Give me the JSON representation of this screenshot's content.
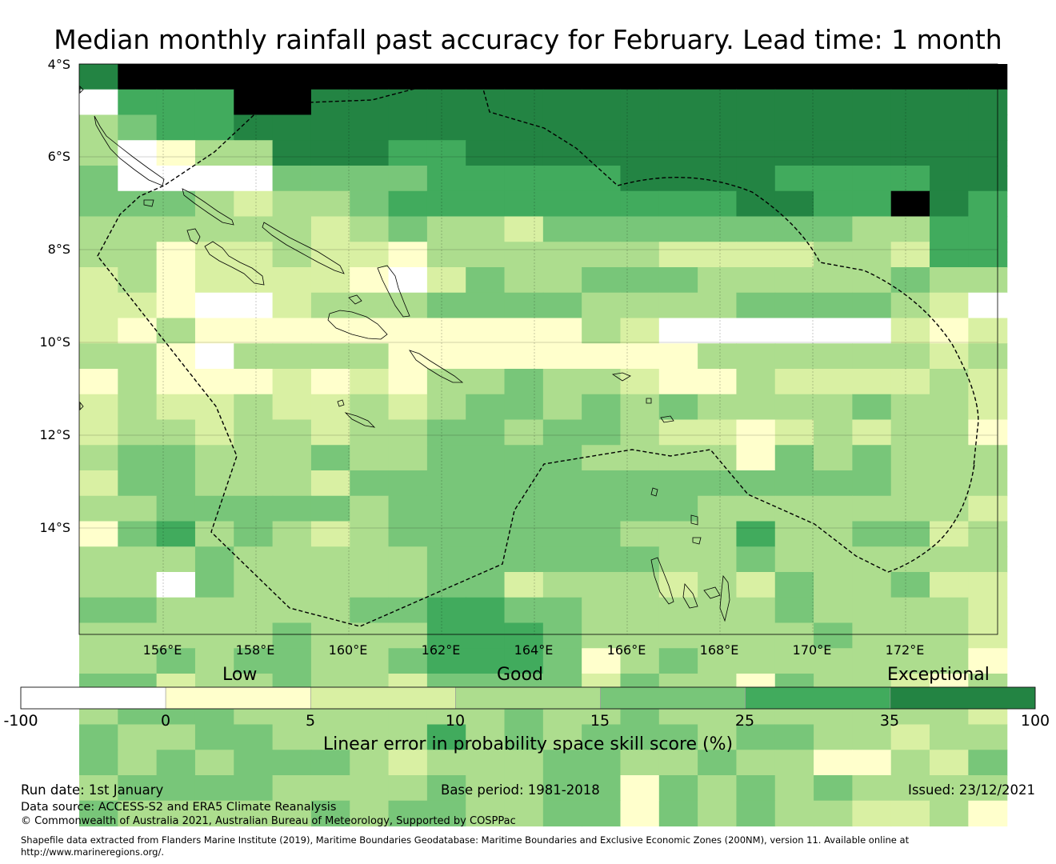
{
  "title": "Median monthly rainfall past accuracy for February. Lead time: 1 month",
  "map": {
    "lat_labels": [
      "4°S",
      "6°S",
      "8°S",
      "10°S",
      "12°S",
      "14°S"
    ],
    "lon_labels": [
      "156°E",
      "158°E",
      "160°E",
      "162°E",
      "164°E",
      "166°E",
      "168°E",
      "170°E",
      "172°E"
    ],
    "lon_range": [
      154.25,
      174.0
    ],
    "lat_range": [
      -4.0,
      -16.25
    ],
    "grid": [
      "677777777777777777777777",
      "055577666666666666666666",
      "345566666666666666666666",
      "301336665566666666666666",
      "400004444555556666555566",
      "444323345555555556655765",
      "333333234332444444443355",
      "331223221333333222233255",
      "231222210243344433333433",
      "221002333444433334444320",
      "213111111111132000000212",
      "331033331111111133333323",
      "131112121334332113222232",
      "232232232344343433334332",
      "233233233443443221232331",
      "344333433444433331434333",
      "244333244444444444444333",
      "334444434444444433333332",
      "145343234444443335334423",
      "333433333444444334333333",
      "330433333442333232433422",
      "443333344554433333433332",
      "333334333555433333343332",
      "334344334555413433333331",
      "442334332444424331433213",
      "344433333334334333333332",
      "433443333534344434433233",
      "434344432333443343311324",
      "344443333433441434343333",
      "433333434433441434332231"
    ],
    "colors": [
      "#ffffff",
      "#ffffcc",
      "#d9f0a3",
      "#addd8e",
      "#78c679",
      "#41ab5d",
      "#238443"
    ]
  },
  "colorbar": {
    "categories": [
      "Low",
      "Good",
      "Exceptional"
    ],
    "ticks": [
      "-100",
      "0",
      "5",
      "10",
      "15",
      "25",
      "35",
      "100"
    ],
    "label": "Linear error in probability space skill score (%)"
  },
  "footer": {
    "run_date": "Run date: 1st January",
    "base_period": "Base period: 1981-2018",
    "issued": "Issued: 23/12/2021",
    "data_source": "Data source: ACCESS-S2 and ERA5 Climate Reanalysis",
    "copyright": "© Commonwealth of Australia 2021, Australian Bureau of Meteorology, Supported by COSPPac",
    "shapefile_line1": "Shapefile data extracted from Flanders Marine Institute (2019), Maritime Boundaries Geodatabase: Maritime Boundaries and Exclusive Economic Zones (200NM), version 11. Available online at",
    "shapefile_line2": "http://www.marineregions.org/."
  }
}
